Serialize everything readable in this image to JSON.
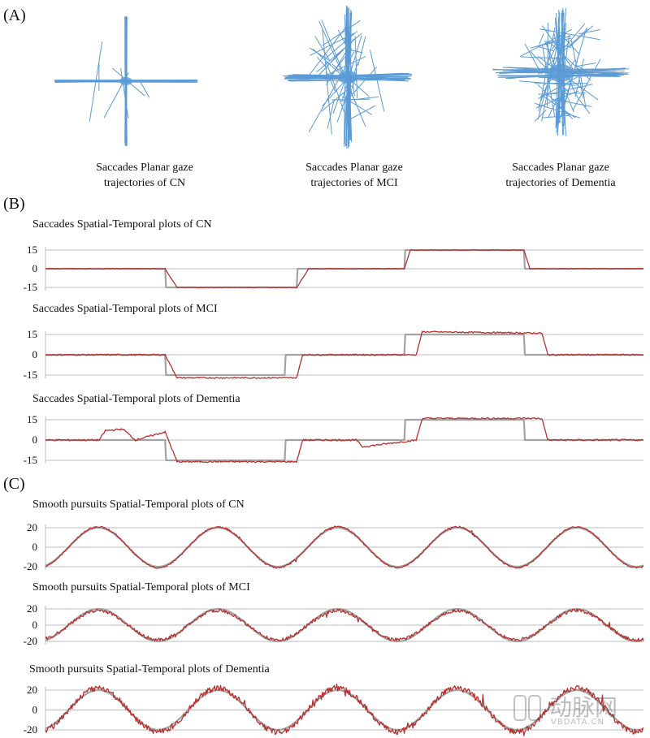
{
  "panels": {
    "a": {
      "label": "(A)",
      "captions": [
        {
          "line1": "Saccades Planar gaze",
          "line2": "trajectories of CN"
        },
        {
          "line1": "Saccades Planar gaze",
          "line2": "trajectories of MCI"
        },
        {
          "line1": "Saccades Planar gaze",
          "line2": "trajectories of  Dementia"
        }
      ]
    },
    "b": {
      "label": "(B)"
    },
    "c": {
      "label": "(C)"
    }
  },
  "colors": {
    "gaze": "#5b9bd5",
    "response": "#b5322f",
    "target": "#a3a3a3",
    "grid": "#bdbdbd"
  },
  "watermark": {
    "line1": "动脉网",
    "line2": "VBDATA.CN"
  },
  "chart_data": [
    {
      "type": "line",
      "title": "Saccades Spatial-Temporal plots of CN",
      "y_ticks": [
        "15",
        "0",
        "-15"
      ],
      "ylim": [
        -15,
        15
      ],
      "series": [
        {
          "role": "target",
          "x": [
            0,
            0.2,
            0.2,
            0.42,
            0.42,
            0.6,
            0.6,
            0.8,
            0.8,
            1
          ],
          "values": [
            0,
            0,
            -15,
            -15,
            0,
            0,
            15,
            15,
            0,
            0
          ]
        },
        {
          "role": "response",
          "x": [
            0,
            0.2,
            0.22,
            0.42,
            0.44,
            0.6,
            0.61,
            0.8,
            0.81,
            1
          ],
          "values": [
            0,
            0,
            -15,
            -15,
            0,
            0,
            15,
            15,
            0,
            0
          ],
          "noise": 0.6
        }
      ]
    },
    {
      "type": "line",
      "title": "Saccades Spatial-Temporal plots of MCI",
      "y_ticks": [
        "15",
        "0",
        "-15"
      ],
      "ylim": [
        -15,
        15
      ],
      "series": [
        {
          "role": "target",
          "x": [
            0,
            0.2,
            0.2,
            0.4,
            0.4,
            0.6,
            0.6,
            0.8,
            0.8,
            1
          ],
          "values": [
            0,
            0,
            -15,
            -15,
            0,
            0,
            15,
            15,
            0,
            0
          ]
        },
        {
          "role": "response",
          "x": [
            0,
            0.2,
            0.22,
            0.42,
            0.43,
            0.62,
            0.63,
            0.83,
            0.84,
            1
          ],
          "values": [
            0,
            0,
            -17,
            -17,
            0,
            0,
            17,
            16,
            0,
            0
          ],
          "noise": 1.0
        }
      ]
    },
    {
      "type": "line",
      "title": "Saccades Spatial-Temporal plots of Dementia",
      "y_ticks": [
        "15",
        "0",
        "-15"
      ],
      "ylim": [
        -15,
        15
      ],
      "series": [
        {
          "role": "target",
          "x": [
            0,
            0.2,
            0.2,
            0.4,
            0.4,
            0.6,
            0.6,
            0.8,
            0.8,
            1
          ],
          "values": [
            0,
            0,
            -15,
            -15,
            0,
            0,
            15,
            15,
            0,
            0
          ]
        },
        {
          "role": "response",
          "x": [
            0,
            0.09,
            0.1,
            0.13,
            0.15,
            0.2,
            0.22,
            0.42,
            0.43,
            0.52,
            0.53,
            0.62,
            0.63,
            0.83,
            0.84,
            1
          ],
          "values": [
            0,
            0,
            7,
            8,
            0,
            6,
            -16,
            -16,
            0,
            0,
            -5,
            0,
            16,
            16,
            0,
            0
          ],
          "noise": 1.2
        }
      ]
    },
    {
      "type": "line",
      "title": "Smooth pursuits Spatial-Temporal plots of CN",
      "y_ticks": [
        "20",
        "0",
        "-20"
      ],
      "ylim": [
        -20,
        20
      ],
      "series": [
        {
          "role": "target",
          "cycles": 5,
          "amplitude": 20
        },
        {
          "role": "response",
          "cycles": 5,
          "amplitude": 21,
          "noise": 1.5
        }
      ]
    },
    {
      "type": "line",
      "title": "Smooth pursuits Spatial-Temporal plots of MCI",
      "y_ticks": [
        "20",
        "0",
        "-20"
      ],
      "ylim": [
        -20,
        20
      ],
      "series": [
        {
          "role": "target",
          "cycles": 5,
          "amplitude": 20
        },
        {
          "role": "response",
          "cycles": 5,
          "amplitude": 18,
          "noise": 4
        }
      ]
    },
    {
      "type": "line",
      "title": "Smooth pursuits Spatial-Temporal plots of Dementia",
      "y_ticks": [
        "20",
        "0",
        "-20"
      ],
      "ylim": [
        -20,
        20
      ],
      "series": [
        {
          "role": "target",
          "cycles": 5,
          "amplitude": 20
        },
        {
          "role": "response",
          "cycles": 5,
          "amplitude": 22,
          "noise": 6
        }
      ]
    }
  ]
}
